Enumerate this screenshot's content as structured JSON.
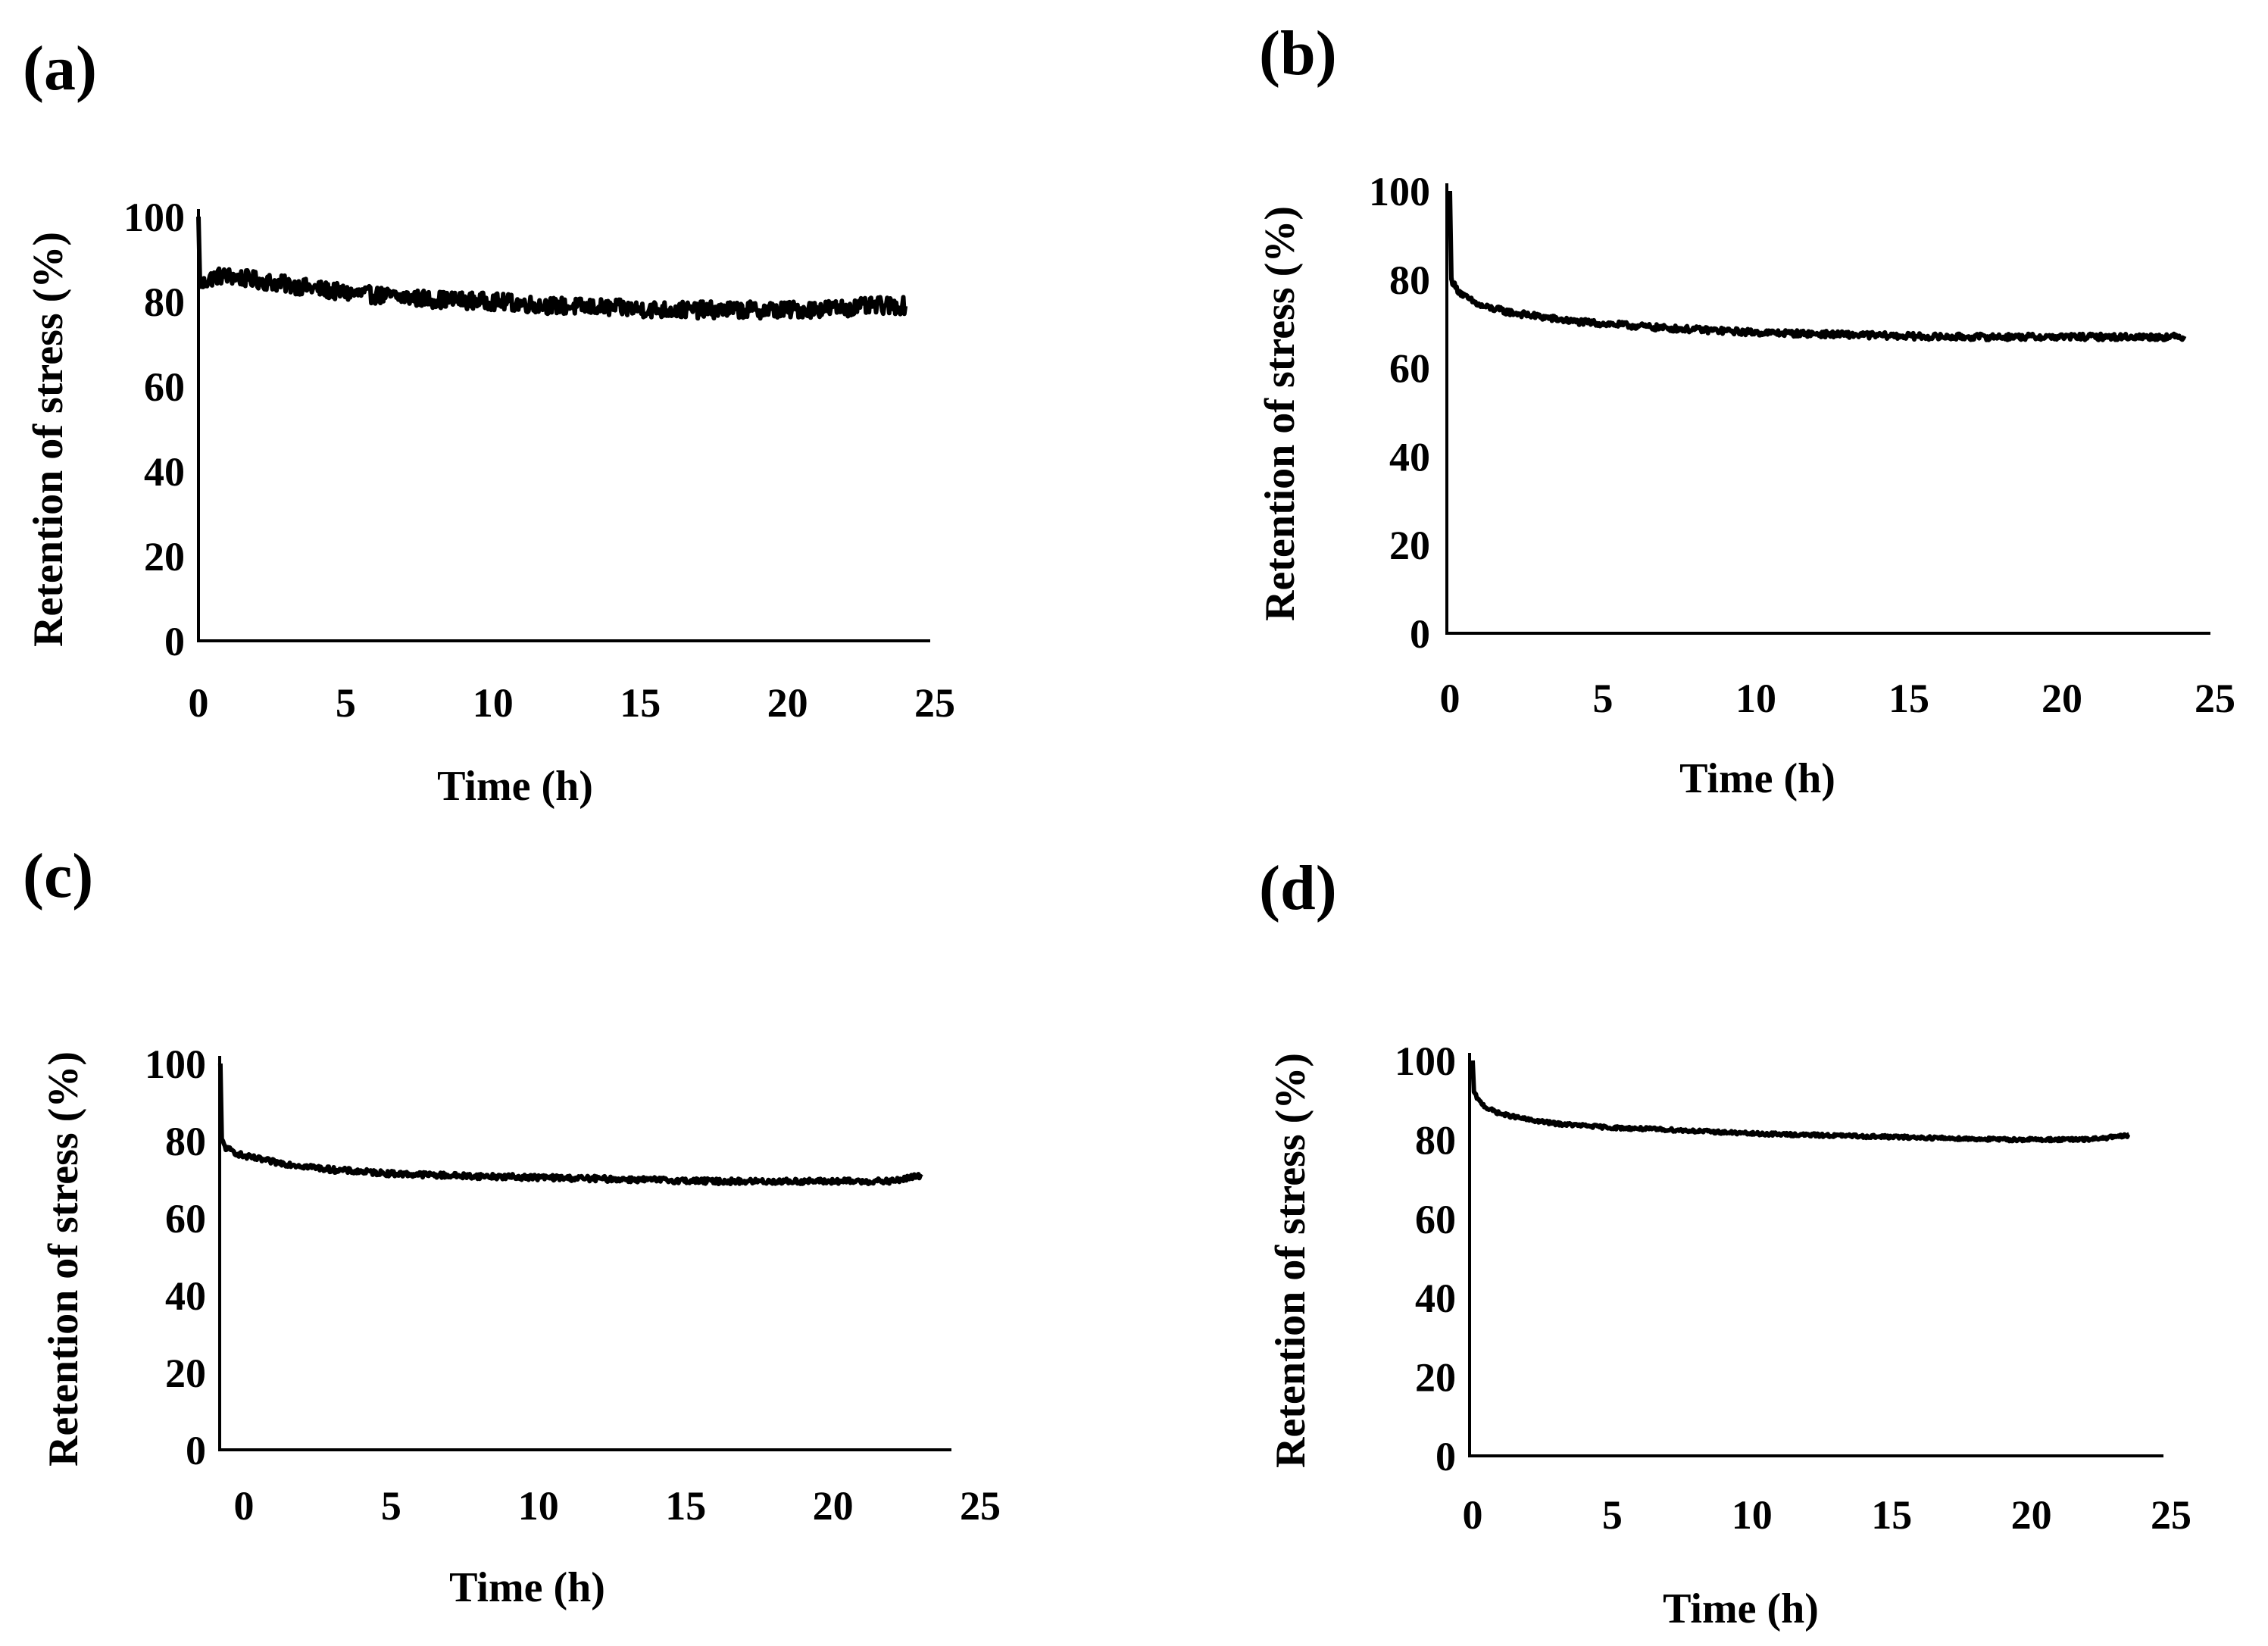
{
  "figure": {
    "panels": [
      "(a)",
      "(b)",
      "(c)",
      "(d)"
    ]
  },
  "colors": {
    "line": "#000000",
    "axis": "#000000",
    "background": "#ffffff"
  },
  "chart_data": [
    {
      "id": "a",
      "panel_label": "(a)",
      "type": "line",
      "title": "",
      "xlabel": "Time (h)",
      "ylabel": "Retention of stress (%)",
      "xlim": [
        0,
        25
      ],
      "ylim": [
        0,
        100
      ],
      "xticks": [
        "0",
        "5",
        "10",
        "15",
        "20",
        "25"
      ],
      "yticks": [
        "0",
        "20",
        "40",
        "60",
        "80",
        "100"
      ],
      "grid": false,
      "legend": "none",
      "noise_amplitude": 2.0,
      "series": [
        {
          "name": "Retention of stress",
          "x": [
            0,
            0.05,
            0.15,
            0.3,
            0.6,
            1,
            2,
            3,
            4,
            5,
            6,
            7,
            8,
            10,
            12,
            14,
            16,
            18,
            20,
            22,
            23,
            24
          ],
          "y": [
            100,
            85,
            84,
            85,
            86,
            86,
            85,
            84,
            83,
            82,
            81.5,
            81,
            80.5,
            80,
            79,
            78.5,
            78,
            78,
            78,
            78.5,
            79,
            79
          ]
        }
      ]
    },
    {
      "id": "b",
      "panel_label": "(b)",
      "type": "line",
      "title": "",
      "xlabel": "Time (h)",
      "ylabel": "Retention of stress (%)",
      "xlim": [
        0,
        25
      ],
      "ylim": [
        0,
        100
      ],
      "xticks": [
        "0",
        "5",
        "10",
        "15",
        "20",
        "25"
      ],
      "yticks": [
        "0",
        "20",
        "40",
        "60",
        "80",
        "100"
      ],
      "grid": false,
      "legend": "none",
      "noise_amplitude": 0.7,
      "series": [
        {
          "name": "Retention of stress",
          "x": [
            0,
            0.05,
            0.2,
            0.5,
            1,
            2,
            3,
            4,
            5,
            7,
            10,
            13,
            16,
            19,
            22,
            24
          ],
          "y": [
            100,
            80,
            78,
            76,
            74,
            72.5,
            71.5,
            70.5,
            70,
            69,
            68,
            67.5,
            67,
            67,
            67,
            67
          ]
        }
      ]
    },
    {
      "id": "c",
      "panel_label": "(c)",
      "type": "line",
      "title": "",
      "xlabel": "Time (h)",
      "ylabel": "Retention of stress (%)",
      "xlim": [
        0,
        25
      ],
      "ylim": [
        0,
        100
      ],
      "xticks": [
        "0",
        "5",
        "10",
        "15",
        "20",
        "25"
      ],
      "yticks": [
        "0",
        "20",
        "40",
        "60",
        "80",
        "100"
      ],
      "grid": false,
      "legend": "none",
      "noise_amplitude": 0.7,
      "series": [
        {
          "name": "Retention of stress",
          "x": [
            -0.8,
            -0.75,
            -0.6,
            -0.3,
            0,
            1,
            2,
            3,
            4,
            5,
            7,
            10,
            13,
            16,
            19,
            22,
            23
          ],
          "y": [
            100,
            80,
            78,
            77,
            76,
            74.5,
            73.5,
            72.5,
            72,
            71.5,
            71,
            70.5,
            70,
            69.5,
            69.5,
            69.5,
            71
          ]
        }
      ]
    },
    {
      "id": "d",
      "panel_label": "(d)",
      "type": "line",
      "title": "",
      "xlabel": "Time (h)",
      "ylabel": "Retention of stress (%)",
      "xlim": [
        0,
        25
      ],
      "ylim": [
        0,
        100
      ],
      "xticks": [
        "0",
        "5",
        "10",
        "15",
        "20",
        "25"
      ],
      "yticks": [
        "0",
        "20",
        "40",
        "60",
        "80",
        "100"
      ],
      "grid": false,
      "legend": "none",
      "noise_amplitude": 0.4,
      "series": [
        {
          "name": "Retention of stress",
          "x": [
            0,
            0.05,
            0.2,
            0.5,
            1,
            2,
            3,
            4,
            5,
            7,
            10,
            13,
            16,
            19,
            22,
            23.5
          ],
          "y": [
            100,
            92,
            90,
            88,
            86.5,
            85,
            84,
            83.5,
            83,
            82.5,
            81.5,
            81,
            80.5,
            80,
            80,
            81
          ]
        }
      ]
    }
  ]
}
